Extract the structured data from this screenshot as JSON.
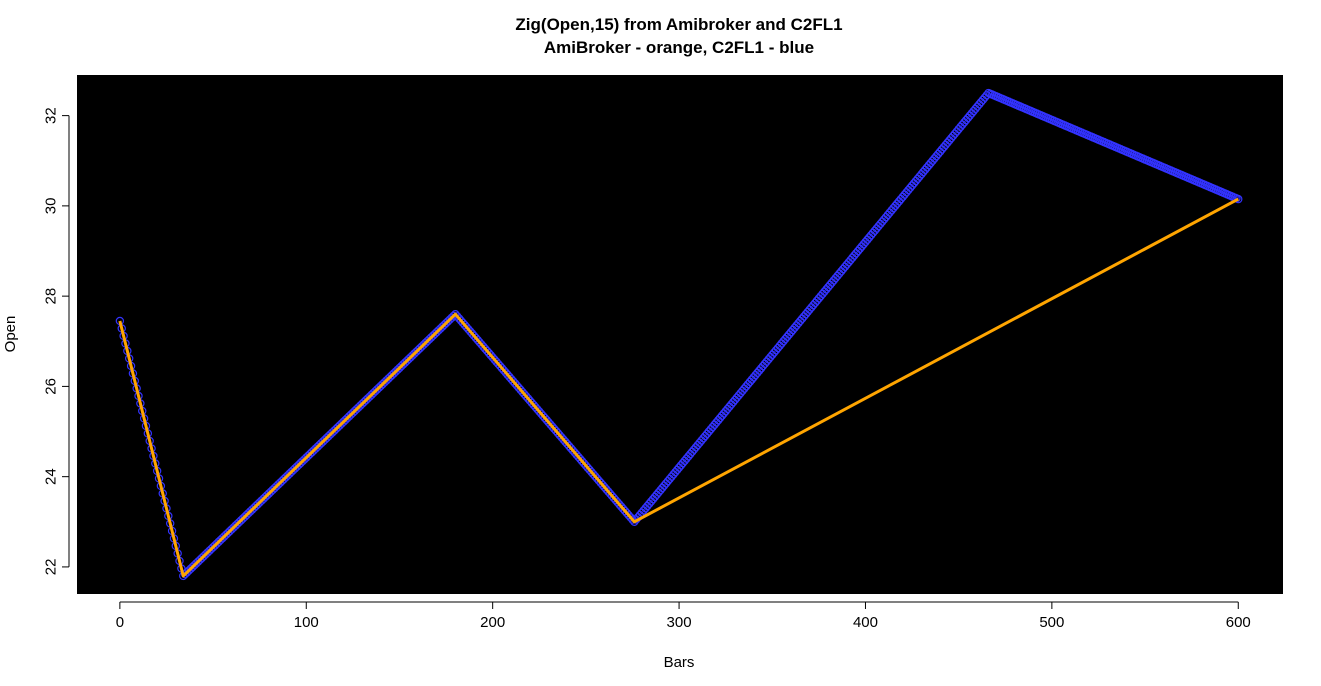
{
  "chart_data": {
    "type": "line",
    "title": "Zig(Open,15) from Amibroker and C2FL1",
    "subtitle": "AmiBroker - orange, C2FL1 - blue",
    "xlabel": "Bars",
    "ylabel": "Open",
    "xlim": [
      -23,
      624
    ],
    "ylim": [
      21.4,
      32.9
    ],
    "xticks": [
      0,
      100,
      200,
      300,
      400,
      500,
      600
    ],
    "yticks": [
      22,
      24,
      26,
      28,
      30,
      32
    ],
    "plot_background": "#000000",
    "grid": false,
    "series": [
      {
        "color": "#3333ff",
        "style": "circles",
        "vertices": [
          {
            "x": 0,
            "y": 27.45
          },
          {
            "x": 34,
            "y": 21.8
          },
          {
            "x": 180,
            "y": 27.6
          },
          {
            "x": 276,
            "y": 23.0
          },
          {
            "x": 466,
            "y": 32.5
          },
          {
            "x": 600,
            "y": 30.15
          }
        ]
      },
      {
        "color": "#ffa500",
        "style": "line",
        "vertices": [
          {
            "x": 0,
            "y": 27.45
          },
          {
            "x": 34,
            "y": 21.8
          },
          {
            "x": 180,
            "y": 27.6
          },
          {
            "x": 276,
            "y": 23.0
          },
          {
            "x": 600,
            "y": 30.15
          }
        ]
      }
    ]
  }
}
